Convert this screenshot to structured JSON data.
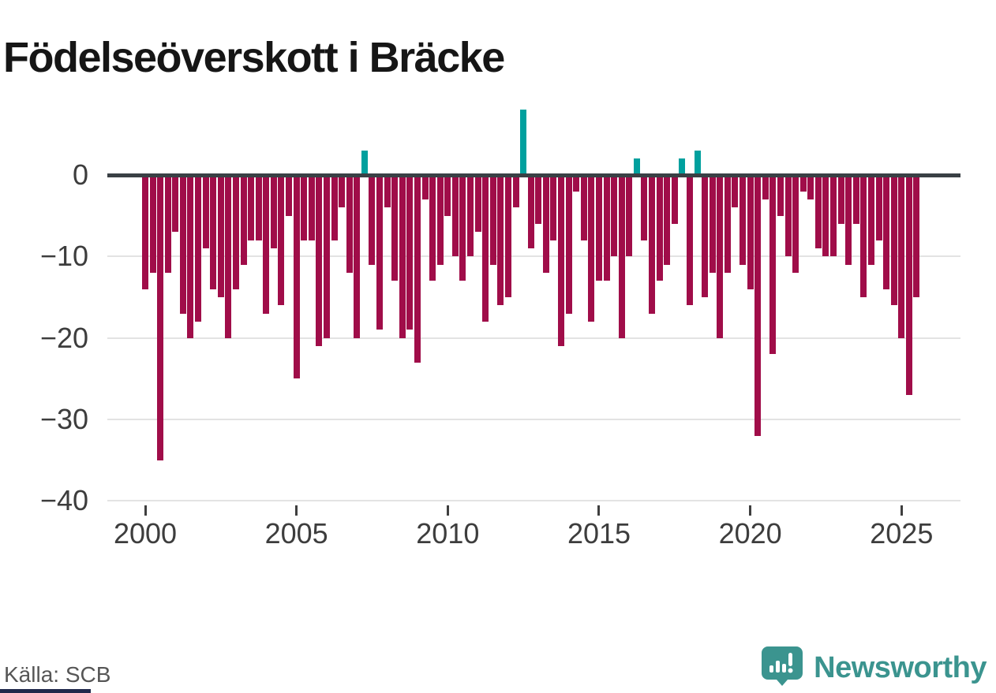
{
  "title": "Födelseöverskott i Bräcke",
  "source": "Källa: SCB",
  "branding": {
    "name": "Newsworthy",
    "icon": "newsworthy-bubble-chart-icon"
  },
  "colors": {
    "negative_bar": "#a00d49",
    "positive_bar": "#00a09e",
    "zero_line": "#3a4045",
    "gridline": "#e3e3e3",
    "brand_teal": "#3b948f",
    "footer_accent_navy": "#20294c"
  },
  "chart_data": {
    "type": "bar",
    "title": "Födelseöverskott i Bräcke",
    "xlabel": "",
    "ylabel": "",
    "x_unit": "quarter",
    "start": "2000 Q1",
    "end": "2025 Q3",
    "ylim": [
      -40,
      9
    ],
    "grid": "horizontal",
    "legend": "none",
    "y_ticks": [
      0,
      -10,
      -20,
      -30,
      -40
    ],
    "y_tick_labels": [
      "0",
      "−10",
      "−20",
      "−30",
      "−40"
    ],
    "x_ticks": [
      2000,
      2005,
      2010,
      2015,
      2020,
      2025
    ],
    "x_tick_labels": [
      "2000",
      "2005",
      "2010",
      "2015",
      "2020",
      "2025"
    ],
    "positive_color": "#00a09e",
    "negative_color": "#a00d49",
    "values_by_year": {
      "2000": [
        -14,
        -12,
        -35,
        -12
      ],
      "2001": [
        -7,
        -17,
        -20,
        -18
      ],
      "2002": [
        -9,
        -14,
        -15,
        -20
      ],
      "2003": [
        -14,
        -11,
        -8,
        -8
      ],
      "2004": [
        -17,
        -9,
        -16,
        -5
      ],
      "2005": [
        -25,
        -8,
        -8,
        -21
      ],
      "2006": [
        -20,
        -8,
        -4,
        -12
      ],
      "2007": [
        -20,
        3,
        -11,
        -19
      ],
      "2008": [
        -4,
        -13,
        -20,
        -19
      ],
      "2009": [
        -23,
        -3,
        -13,
        -11
      ],
      "2010": [
        -5,
        -10,
        -13,
        -10
      ],
      "2011": [
        -7,
        -18,
        -11,
        -16
      ],
      "2012": [
        -15,
        -4,
        8,
        -9
      ],
      "2013": [
        -6,
        -12,
        -8,
        -21
      ],
      "2014": [
        -17,
        -2,
        -8,
        -18
      ],
      "2015": [
        -13,
        -13,
        -10,
        -20
      ],
      "2016": [
        -10,
        2,
        -8,
        -17
      ],
      "2017": [
        -13,
        -11,
        -6,
        2
      ],
      "2018": [
        -16,
        3,
        -15,
        -12
      ],
      "2019": [
        -20,
        -12,
        -4,
        -11
      ],
      "2020": [
        -14,
        -32,
        -3,
        -22
      ],
      "2021": [
        -5,
        -10,
        -12,
        -2
      ],
      "2022": [
        -3,
        -9,
        -10,
        -10
      ],
      "2023": [
        -6,
        -11,
        -6,
        -15
      ],
      "2024": [
        -11,
        -8,
        -14,
        -16
      ],
      "2025": [
        -20,
        -27,
        -15
      ]
    }
  }
}
